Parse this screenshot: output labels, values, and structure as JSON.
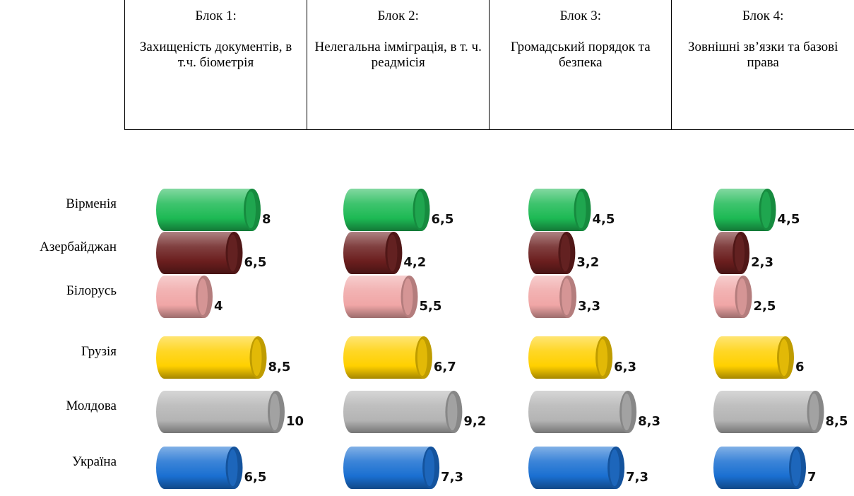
{
  "blocks": [
    {
      "title": "Блок 1:",
      "desc": "Захищеність документів, в т.ч. біометрія"
    },
    {
      "title": "Блок 2:",
      "desc": "Нелегальна імміграція, в т. ч. реадмісія"
    },
    {
      "title": "Блок 3:",
      "desc": "Громадський порядок та безпека"
    },
    {
      "title": "Блок 4:",
      "desc": "Зовнішні зв’язки та базові права"
    }
  ],
  "chart_data": {
    "type": "bar",
    "orientation": "horizontal",
    "style": "3d-cylinder",
    "categories": [
      "Вірменія",
      "Азербайджан",
      "Білорусь",
      "Грузія",
      "Молдова",
      "Україна"
    ],
    "category_colors": [
      "#1db954",
      "#6b1e1e",
      "#f0a6a6",
      "#ffd000",
      "#b4b4b4",
      "#1a6fd1"
    ],
    "panels": [
      {
        "block": "Блок 1:",
        "values": [
          8,
          6.5,
          4,
          8.5,
          10,
          6.5
        ],
        "labels": [
          "8",
          "6,5",
          "4",
          "8,5",
          "10",
          "6,5"
        ]
      },
      {
        "block": "Блок 2:",
        "values": [
          6.5,
          4.2,
          5.5,
          6.7,
          9.2,
          7.3
        ],
        "labels": [
          "6,5",
          "4,2",
          "5,5",
          "6,7",
          "9,2",
          "7,3"
        ]
      },
      {
        "block": "Блок 3:",
        "values": [
          4.5,
          3.2,
          3.3,
          6.3,
          8.3,
          7.3
        ],
        "labels": [
          "4,5",
          "3,2",
          "3,3",
          "6,3",
          "8,3",
          "7,3"
        ]
      },
      {
        "block": "Блок 4:",
        "values": [
          4.5,
          2.3,
          2.5,
          6,
          8.5,
          7
        ],
        "labels": [
          "4,5",
          "2,3",
          "2,5",
          "6",
          "8,5",
          "7"
        ]
      }
    ],
    "xlim": [
      0,
      10
    ],
    "grid": false,
    "legend": "none"
  }
}
